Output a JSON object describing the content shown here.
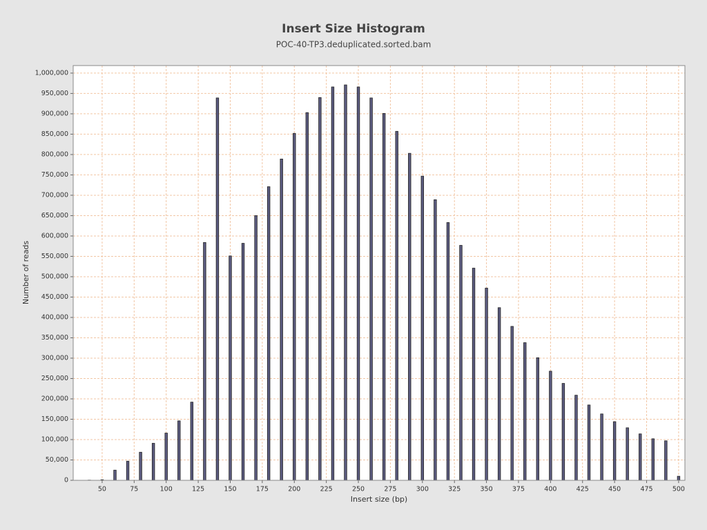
{
  "chart_data": {
    "type": "bar",
    "title": "Insert Size Histogram",
    "subtitle": "POC-40-TP3.deduplicated.sorted.bam",
    "x_label": "Insert size (bp)",
    "y_label": "Number of reads",
    "x": [
      30,
      40,
      50,
      60,
      70,
      80,
      90,
      100,
      110,
      120,
      130,
      140,
      150,
      160,
      170,
      180,
      190,
      200,
      210,
      220,
      230,
      240,
      250,
      260,
      270,
      280,
      290,
      300,
      310,
      320,
      330,
      340,
      350,
      360,
      370,
      380,
      390,
      400,
      410,
      420,
      430,
      440,
      450,
      460,
      470,
      480,
      490,
      500
    ],
    "values": [
      200,
      500,
      1500,
      25000,
      47000,
      69000,
      91000,
      116000,
      146000,
      192000,
      584000,
      939000,
      551000,
      582000,
      650000,
      721000,
      789000,
      852000,
      903000,
      940000,
      966000,
      971000,
      966000,
      939000,
      901000,
      857000,
      803000,
      747000,
      689000,
      633000,
      577000,
      521000,
      472000,
      424000,
      378000,
      338000,
      301000,
      268000,
      238000,
      209000,
      185000,
      163000,
      144000,
      129000,
      114000,
      102000,
      97000,
      10000
    ],
    "color": "#5c5c80",
    "xlim": [
      27.4,
      504.9
    ],
    "xticks": [
      50,
      75,
      100,
      125,
      150,
      175,
      200,
      225,
      250,
      275,
      300,
      325,
      350,
      375,
      400,
      425,
      450,
      475,
      500
    ],
    "ylim": [
      0,
      1018500
    ],
    "yticks": [
      0,
      {
        "value": 50000,
        "label": "50,000"
      },
      {
        "value": 100000,
        "label": "100,000"
      },
      {
        "value": 150000,
        "label": "150,000"
      },
      {
        "value": 200000,
        "label": "200,000"
      },
      {
        "value": 250000,
        "label": "250,000"
      },
      {
        "value": 300000,
        "label": "300,000"
      },
      {
        "value": 350000,
        "label": "350,000"
      },
      {
        "value": 400000,
        "label": "400,000"
      },
      {
        "value": 450000,
        "label": "450,000"
      },
      {
        "value": 500000,
        "label": "500,000"
      },
      {
        "value": 550000,
        "label": "550,000"
      },
      {
        "value": 600000,
        "label": "600,000"
      },
      {
        "value": 650000,
        "label": "650,000"
      },
      {
        "value": 700000,
        "label": "700,000"
      },
      {
        "value": 750000,
        "label": "750,000"
      },
      {
        "value": 800000,
        "label": "800,000"
      },
      {
        "value": 850000,
        "label": "850,000"
      },
      {
        "value": 900000,
        "label": "900,000"
      },
      {
        "value": 950000,
        "label": "950,000"
      },
      {
        "value": 1000000,
        "label": "1,000,000"
      }
    ],
    "grid": true
  }
}
